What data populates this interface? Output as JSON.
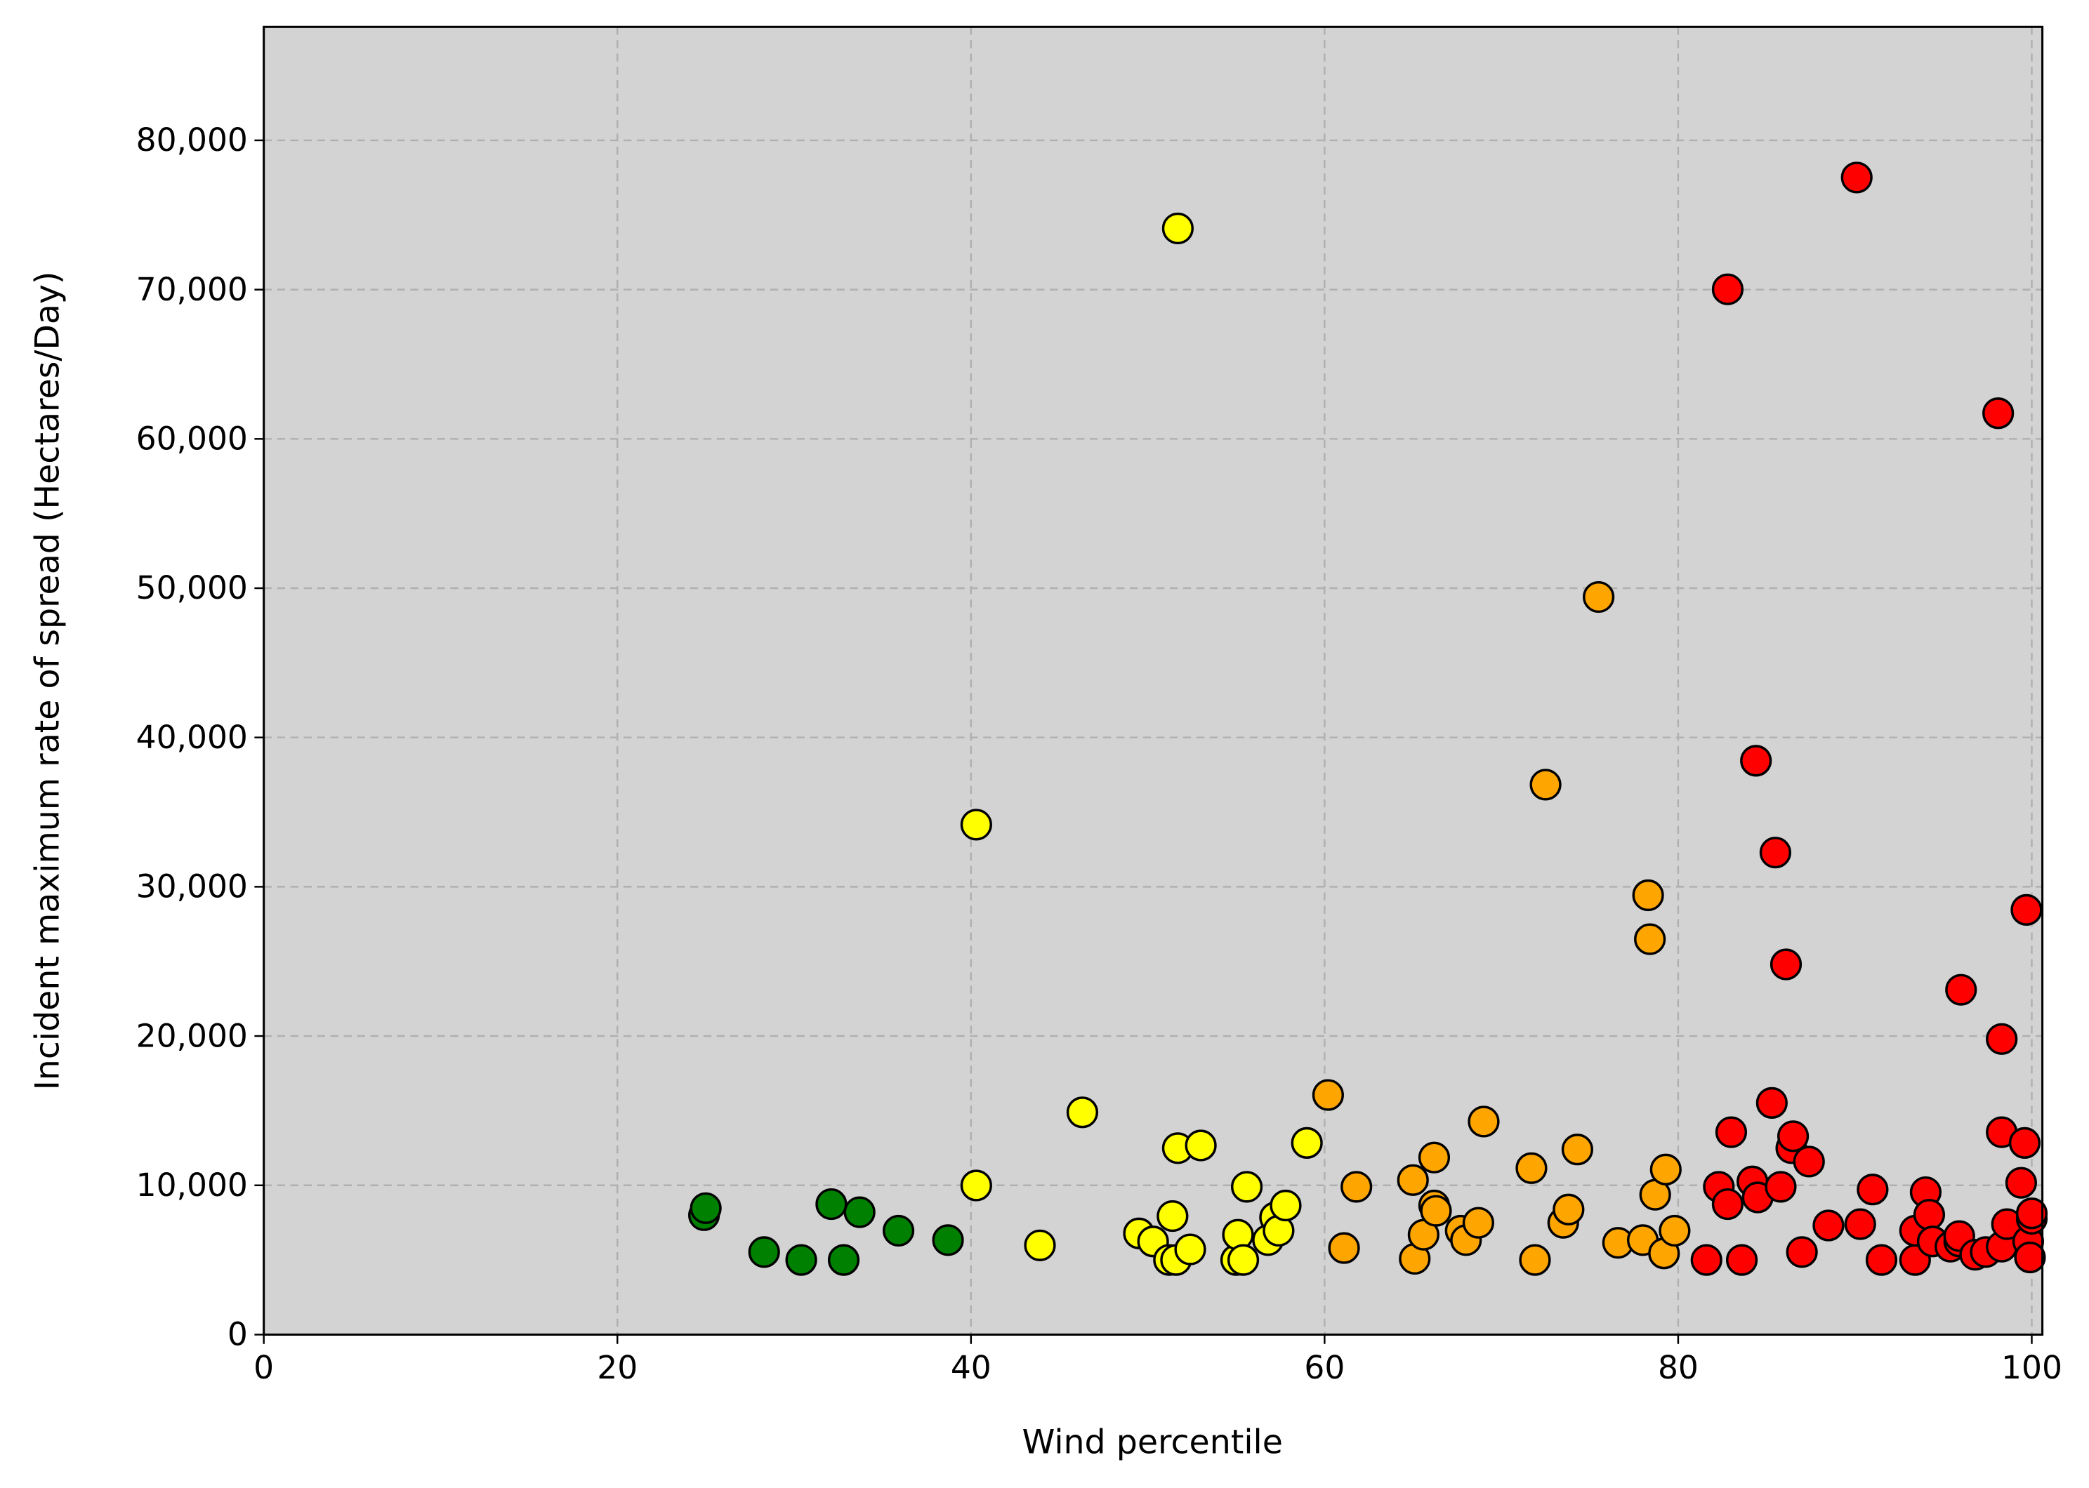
{
  "chart_data": {
    "type": "scatter",
    "title": "",
    "xlabel": "Wind percentile",
    "ylabel": "Incident maximum rate of spread (Hectares/Day)",
    "xlim": [
      0,
      100.6
    ],
    "ylim": [
      0,
      87600
    ],
    "grid": true,
    "background": "#d3d3d3",
    "x_ticks": [
      0,
      20,
      40,
      60,
      80,
      100
    ],
    "x_tick_labels": [
      "0",
      "20",
      "40",
      "60",
      "80",
      "100"
    ],
    "y_ticks": [
      0,
      10000,
      20000,
      30000,
      40000,
      50000,
      60000,
      70000,
      80000
    ],
    "y_tick_labels": [
      "0",
      "10,000",
      "20,000",
      "30,000",
      "40,000",
      "50,000",
      "60,000",
      "70,000",
      "80,000"
    ],
    "series": [
      {
        "color": "#008000",
        "points": [
          [
            24.9,
            8000
          ],
          [
            25,
            8470
          ],
          [
            28.3,
            5530
          ],
          [
            30.4,
            5000
          ],
          [
            32.1,
            8740
          ],
          [
            32.8,
            5000
          ],
          [
            33.7,
            8200
          ],
          [
            35.9,
            6960
          ],
          [
            38.7,
            6330
          ]
        ]
      },
      {
        "color": "#ffff00",
        "points": [
          [
            40.3,
            34160
          ],
          [
            40.3,
            9990
          ],
          [
            43.9,
            5980
          ],
          [
            46.3,
            14890
          ],
          [
            49.5,
            6780
          ],
          [
            50.3,
            6240
          ],
          [
            51.7,
            74100
          ],
          [
            51.4,
            7940
          ],
          [
            51.2,
            5000
          ],
          [
            51.6,
            5000
          ],
          [
            51.7,
            12490
          ],
          [
            52.4,
            5710
          ],
          [
            53.0,
            12670
          ],
          [
            55.0,
            5000
          ],
          [
            55.1,
            6690
          ],
          [
            55.4,
            5000
          ],
          [
            55.6,
            9900
          ],
          [
            56.8,
            6330
          ],
          [
            57.2,
            7850
          ],
          [
            57.4,
            6960
          ],
          [
            57.8,
            8650
          ],
          [
            59.0,
            12840
          ]
        ]
      },
      {
        "color": "#ffa500",
        "points": [
          [
            60.2,
            16050
          ],
          [
            61.1,
            5800
          ],
          [
            61.8,
            9900
          ],
          [
            65.0,
            10350
          ],
          [
            65.1,
            5080
          ],
          [
            65.6,
            6690
          ],
          [
            66.2,
            11860
          ],
          [
            66.2,
            8650
          ],
          [
            66.3,
            8290
          ],
          [
            67.7,
            6960
          ],
          [
            68.0,
            6330
          ],
          [
            68.7,
            7490
          ],
          [
            69.0,
            14270
          ],
          [
            71.7,
            11150
          ],
          [
            71.9,
            5000
          ],
          [
            72.5,
            36840
          ],
          [
            73.5,
            7490
          ],
          [
            73.8,
            8380
          ],
          [
            74.3,
            12400
          ],
          [
            75.5,
            49410
          ],
          [
            76.6,
            6150
          ],
          [
            78.0,
            6330
          ],
          [
            78.3,
            29430
          ],
          [
            78.4,
            26490
          ],
          [
            78.7,
            9370
          ],
          [
            79.2,
            5440
          ],
          [
            79.3,
            11060
          ],
          [
            79.8,
            6960
          ]
        ]
      },
      {
        "color": "#ff0000",
        "points": [
          [
            81.6,
            5000
          ],
          [
            82.3,
            9900
          ],
          [
            82.8,
            70020
          ],
          [
            82.8,
            8740
          ],
          [
            83.0,
            13560
          ],
          [
            83.6,
            5000
          ],
          [
            84.2,
            10260
          ],
          [
            84.4,
            38440
          ],
          [
            84.5,
            9190
          ],
          [
            85.3,
            15520
          ],
          [
            85.5,
            32290
          ],
          [
            85.8,
            9900
          ],
          [
            86.1,
            24800
          ],
          [
            86.4,
            12490
          ],
          [
            86.5,
            13290
          ],
          [
            87.0,
            5530
          ],
          [
            87.4,
            11590
          ],
          [
            88.5,
            7310
          ],
          [
            90.1,
            77510
          ],
          [
            90.3,
            7400
          ],
          [
            91.0,
            9720
          ],
          [
            91.5,
            5000
          ],
          [
            93.4,
            5000
          ],
          [
            93.4,
            6960
          ],
          [
            94.0,
            9540
          ],
          [
            94.2,
            8030
          ],
          [
            94.4,
            6240
          ],
          [
            95.4,
            5890
          ],
          [
            95.9,
            6240
          ],
          [
            95.9,
            6600
          ],
          [
            96.0,
            23100
          ],
          [
            96.8,
            5350
          ],
          [
            97.4,
            5530
          ],
          [
            98.1,
            61720
          ],
          [
            98.3,
            5890
          ],
          [
            98.3,
            19800
          ],
          [
            98.3,
            13560
          ],
          [
            98.6,
            7400
          ],
          [
            99.4,
            10170
          ],
          [
            99.6,
            12840
          ],
          [
            99.7,
            28450
          ],
          [
            99.8,
            6240
          ],
          [
            99.9,
            5170
          ],
          [
            100,
            7760
          ],
          [
            100,
            8120
          ]
        ]
      }
    ]
  }
}
